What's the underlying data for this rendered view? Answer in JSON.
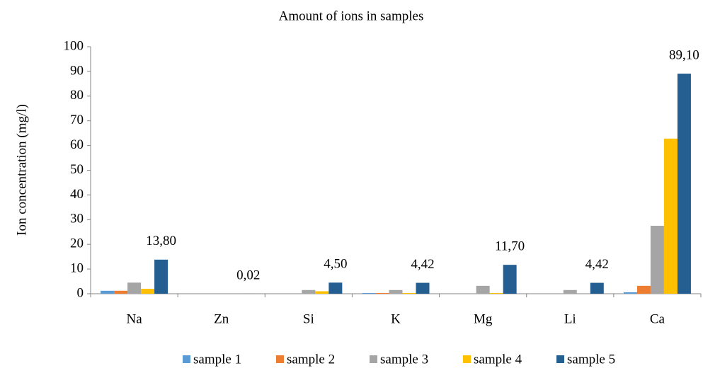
{
  "chart_data": {
    "type": "bar",
    "title": "Amount of ions in samples",
    "y_label": "Ion concentration (mg/l)",
    "categories": [
      "Na",
      "Zn",
      "Si",
      "K",
      "Mg",
      "Li",
      "Ca"
    ],
    "series": [
      {
        "name": "sample 1",
        "color": "#5b9bd5",
        "values": [
          1.2,
          0,
          0,
          0.3,
          0,
          0,
          0.6
        ]
      },
      {
        "name": "sample 2",
        "color": "#ed7d31",
        "values": [
          1.2,
          0,
          0,
          0.3,
          0,
          0,
          3.2
        ]
      },
      {
        "name": "sample 3",
        "color": "#a5a5a5",
        "values": [
          4.5,
          0,
          1.5,
          1.5,
          3.2,
          1.5,
          27.5
        ]
      },
      {
        "name": "sample 4",
        "color": "#ffc000",
        "values": [
          2.0,
          0,
          1.0,
          0.3,
          0.3,
          0,
          62.8
        ]
      },
      {
        "name": "sample 5",
        "color": "#255e91",
        "values": [
          13.8,
          0.02,
          4.5,
          4.42,
          11.7,
          4.42,
          89.1
        ],
        "value_labels": [
          "13,80",
          "0,02",
          "4,50",
          "4,42",
          "11,70",
          "4,42",
          "89,10"
        ]
      }
    ],
    "ylim": [
      0,
      100
    ],
    "yticks": [
      0,
      10,
      20,
      30,
      40,
      50,
      60,
      70,
      80,
      90,
      100
    ],
    "grid": false,
    "legend": "bottom"
  }
}
